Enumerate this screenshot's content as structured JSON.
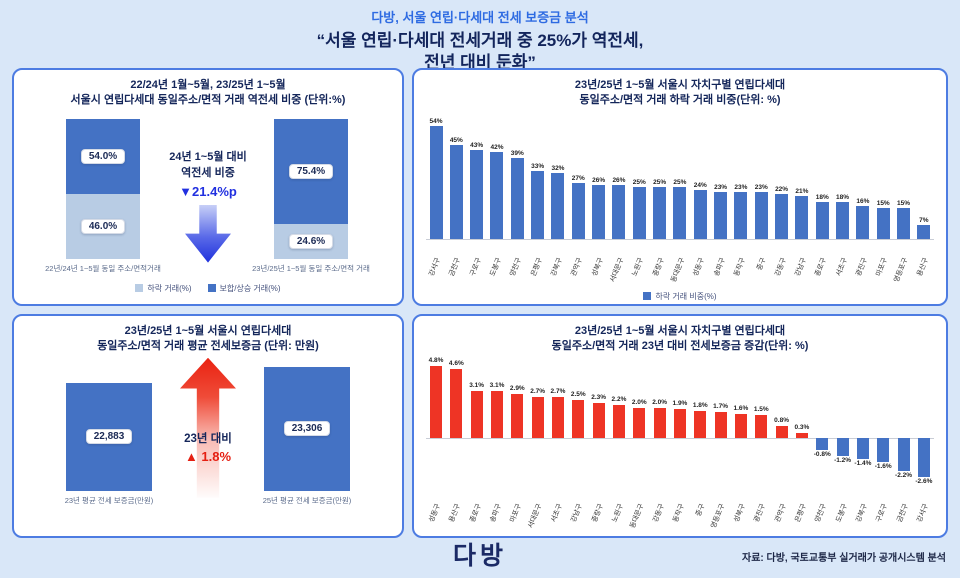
{
  "page": {
    "subtitle": "다방, 서울 연립·다세대 전세 보증금 분석",
    "title_line1": "“서울 연립·다세대 전세거래 중 25%가 역전세,",
    "title_line2": "전년 대비 둔화”",
    "logo": "다방",
    "source": "자료: 다방, 국토교통부 실거래가 공개시스템 분석"
  },
  "colors": {
    "background": "#d9e7f8",
    "panel_border": "#4d7ce2",
    "navy": "#15265a",
    "header_blue": "#2e6be2",
    "bar_dark_blue": "#4472c4",
    "bar_light_blue": "#b8cce4",
    "bar_red": "#ee3425",
    "annotation_blue": "#2130e0",
    "annotation_red": "#e51f12"
  },
  "chart_data": [
    {
      "id": "reverse-jeonse-ratio",
      "type": "bar",
      "stacked": true,
      "title_line1": "22/24년 1월~5월, 23/25년 1~5월",
      "title_line2": "서울시 연립다세대 동일주소/면적 거래 역전세 비중 (단위:%)",
      "categories": [
        "22년/24년 1~5월 동일 주소/면적거래",
        "23년/25년 1~5월 동일 주소/면적 거래"
      ],
      "series": [
        {
          "name": "하락 거래(%)",
          "color_key": "bar_light_blue",
          "values": [
            46.0,
            24.6
          ]
        },
        {
          "name": "보합/상승 거래(%)",
          "color_key": "bar_dark_blue",
          "values": [
            54.0,
            75.4
          ]
        }
      ],
      "value_labels": [
        [
          "54.0%",
          "46.0%"
        ],
        [
          "75.4%",
          "24.6%"
        ]
      ],
      "ylim": [
        0,
        100
      ],
      "annotation": {
        "line1": "24년 1~5월 대비",
        "line2": "역전세 비중",
        "value": "▼21.4%p",
        "arrow": "down"
      }
    },
    {
      "id": "district-decline-share",
      "type": "bar",
      "title_line1": "23년/25년 1~5월 서울시 자치구별 연립다세대",
      "title_line2": "동일주소/면적 거래 하락 거래 비중(단위: %)",
      "categories": [
        "강서구",
        "금천구",
        "구로구",
        "도봉구",
        "양천구",
        "은평구",
        "강북구",
        "관악구",
        "성북구",
        "서대문구",
        "노원구",
        "중랑구",
        "동대문구",
        "성동구",
        "송파구",
        "동작구",
        "중구",
        "강동구",
        "강남구",
        "종로구",
        "서초구",
        "광진구",
        "마포구",
        "영등포구",
        "용산구"
      ],
      "values": [
        54,
        45,
        43,
        42,
        39,
        33,
        32,
        27,
        26,
        26,
        25,
        25,
        25,
        24,
        23,
        23,
        23,
        22,
        21,
        18,
        18,
        16,
        15,
        15,
        7
      ],
      "ylim": [
        0,
        58
      ],
      "legend": "하락 거래 비중(%)"
    },
    {
      "id": "avg-deposit",
      "type": "bar",
      "title_line1": "23년/25년 1~5월 서울시 연립다세대",
      "title_line2": "동일주소/면적 거래 평균 전세보증금 (단위: 만원)",
      "categories": [
        "23년 평균 전세 보증금(만원)",
        "25년 평균 전세 보증금(만원)"
      ],
      "values": [
        22883,
        23306
      ],
      "value_labels": [
        "22,883",
        "23,306"
      ],
      "ylim": [
        20000,
        24000
      ],
      "annotation": {
        "line1": "23년 대비",
        "value": "▲ 1.8%",
        "arrow": "up"
      }
    },
    {
      "id": "district-deposit-change",
      "type": "bar",
      "title_line1": "23년/25년 1~5월 서울시 자치구별 연립다세대",
      "title_line2": "동일주소/면적 거래 23년 대비 전세보증금 증감(단위: %)",
      "categories": [
        "성동구",
        "용산구",
        "종로구",
        "송파구",
        "마포구",
        "서대문구",
        "서초구",
        "강남구",
        "중랑구",
        "노원구",
        "동대문구",
        "강동구",
        "동작구",
        "중구",
        "영등포구",
        "성북구",
        "광진구",
        "관악구",
        "은평구",
        "양천구",
        "도봉구",
        "강북구",
        "구로구",
        "금천구",
        "강서구"
      ],
      "values": [
        4.8,
        4.6,
        3.1,
        3.1,
        2.9,
        2.7,
        2.7,
        2.5,
        2.3,
        2.2,
        2.0,
        2.0,
        1.9,
        1.8,
        1.7,
        1.6,
        1.5,
        0.8,
        0.3,
        -0.8,
        -1.2,
        -1.4,
        -1.6,
        -2.2,
        -2.6
      ],
      "ylim": [
        -3,
        5
      ]
    }
  ]
}
